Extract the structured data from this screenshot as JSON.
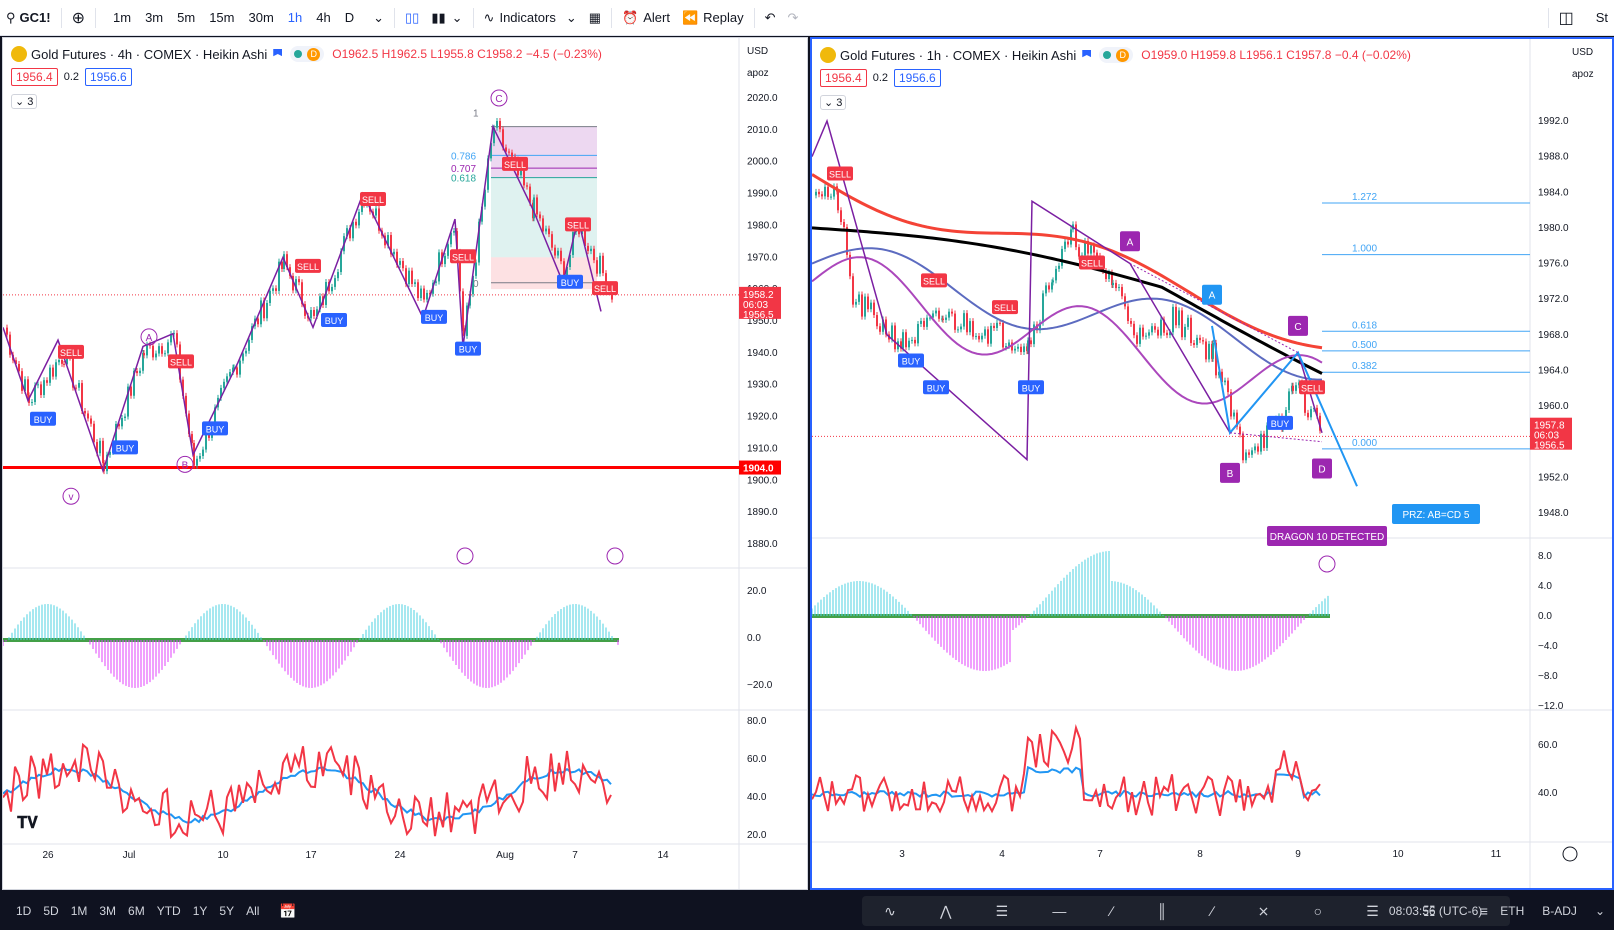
{
  "toolbar": {
    "symbol": "GC1!",
    "timeframes": [
      "1m",
      "3m",
      "5m",
      "15m",
      "30m",
      "1h",
      "4h",
      "D"
    ],
    "active_timeframe": "1h",
    "indicators_label": "Indicators",
    "alert_label": "Alert",
    "replay_label": "Replay",
    "right_label": "St"
  },
  "left_chart": {
    "title": "Gold Futures · 4h · COMEX · Heikin Ashi",
    "ohlc": {
      "o": "O1962.5",
      "h": "H1962.5",
      "l": "L1955.8",
      "c": "C1958.2",
      "chg": "−4.5 (−0.23%)"
    },
    "bid": "1956.4",
    "spread": "0.2",
    "ask": "1956.6",
    "collapse": "3",
    "currency": "USD",
    "scale_mode": "apoz",
    "price_axis": [
      "2020.0",
      "2010.0",
      "2000.0",
      "1990.0",
      "1980.0",
      "1970.0",
      "1960.0",
      "1950.0",
      "1940.0",
      "1930.0",
      "1920.0",
      "1910.0",
      "1900.0",
      "1890.0",
      "1880.0"
    ],
    "last_price": "1958.2",
    "countdown": "06:03",
    "ask_tag": "1956.5",
    "support_tag": "1904.0",
    "osc1_axis": [
      "20.0",
      "0.0",
      "−20.0"
    ],
    "osc2_axis": [
      "80.0",
      "60.0",
      "40.0",
      "20.0"
    ],
    "time_axis": [
      "26",
      "Jul",
      "10",
      "17",
      "24",
      "Aug",
      "7",
      "14"
    ],
    "fib_labels": [
      "1",
      "0.786",
      "0.707",
      "0.618",
      "0"
    ],
    "wave_labels": [
      "A",
      "B",
      "C",
      "v"
    ],
    "signals": [
      {
        "t": "SELL"
      },
      {
        "t": "BUY"
      },
      {
        "t": "BUY"
      },
      {
        "t": "SELL"
      },
      {
        "t": "BUY"
      },
      {
        "t": "SELL"
      },
      {
        "t": "BUY"
      },
      {
        "t": "SELL"
      },
      {
        "t": "BUY"
      },
      {
        "t": "SELL"
      },
      {
        "t": "BUY"
      },
      {
        "t": "SELL"
      },
      {
        "t": "SELL"
      },
      {
        "t": "BUY"
      },
      {
        "t": "SELL"
      }
    ]
  },
  "right_chart": {
    "title": "Gold Futures · 1h · COMEX · Heikin Ashi",
    "ohlc": {
      "o": "O1959.0",
      "h": "H1959.8",
      "l": "L1956.1",
      "c": "C1957.8",
      "chg": "−0.4 (−0.02%)"
    },
    "bid": "1956.4",
    "spread": "0.2",
    "ask": "1956.6",
    "collapse": "3",
    "currency": "USD",
    "scale_mode": "apoz",
    "price_axis": [
      "1992.0",
      "1988.0",
      "1984.0",
      "1980.0",
      "1976.0",
      "1972.0",
      "1968.0",
      "1964.0",
      "1960.0",
      "1956.0",
      "1952.0",
      "1948.0"
    ],
    "last_price": "1957.8",
    "countdown": "06:03",
    "ask_tag": "1956.5",
    "osc1_axis": [
      "8.0",
      "4.0",
      "0.0",
      "−4.0",
      "−8.0",
      "−12.0"
    ],
    "osc2_axis": [
      "60.0",
      "40.0"
    ],
    "time_axis": [
      "3",
      "4",
      "7",
      "8",
      "9",
      "10",
      "11"
    ],
    "fib_levels": [
      "1.272",
      "1.000",
      "0.618",
      "0.500",
      "0.382",
      "0.000"
    ],
    "pattern_points": [
      "A",
      "B",
      "C",
      "D",
      "A"
    ],
    "prz_label": "PRZ: AB=CD 5",
    "detected_label": "DRAGON 10 DETECTED",
    "signals": [
      {
        "t": "SELL"
      },
      {
        "t": "SELL"
      },
      {
        "t": "BUY"
      },
      {
        "t": "BUY"
      },
      {
        "t": "SELL"
      },
      {
        "t": "BUY"
      },
      {
        "t": "SELL"
      },
      {
        "t": "BUY"
      },
      {
        "t": "SELL"
      }
    ]
  },
  "bottom": {
    "ranges": [
      "1D",
      "5D",
      "1M",
      "3M",
      "6M",
      "YTD",
      "1Y",
      "5Y",
      "All"
    ],
    "time": "08:03:56 (UTC-6)",
    "session": "ETH",
    "adj": "B-ADJ"
  },
  "colors": {
    "sell": "#f23645",
    "buy": "#2962ff",
    "pattern": "#9c27b0",
    "accent": "#2962ff"
  }
}
